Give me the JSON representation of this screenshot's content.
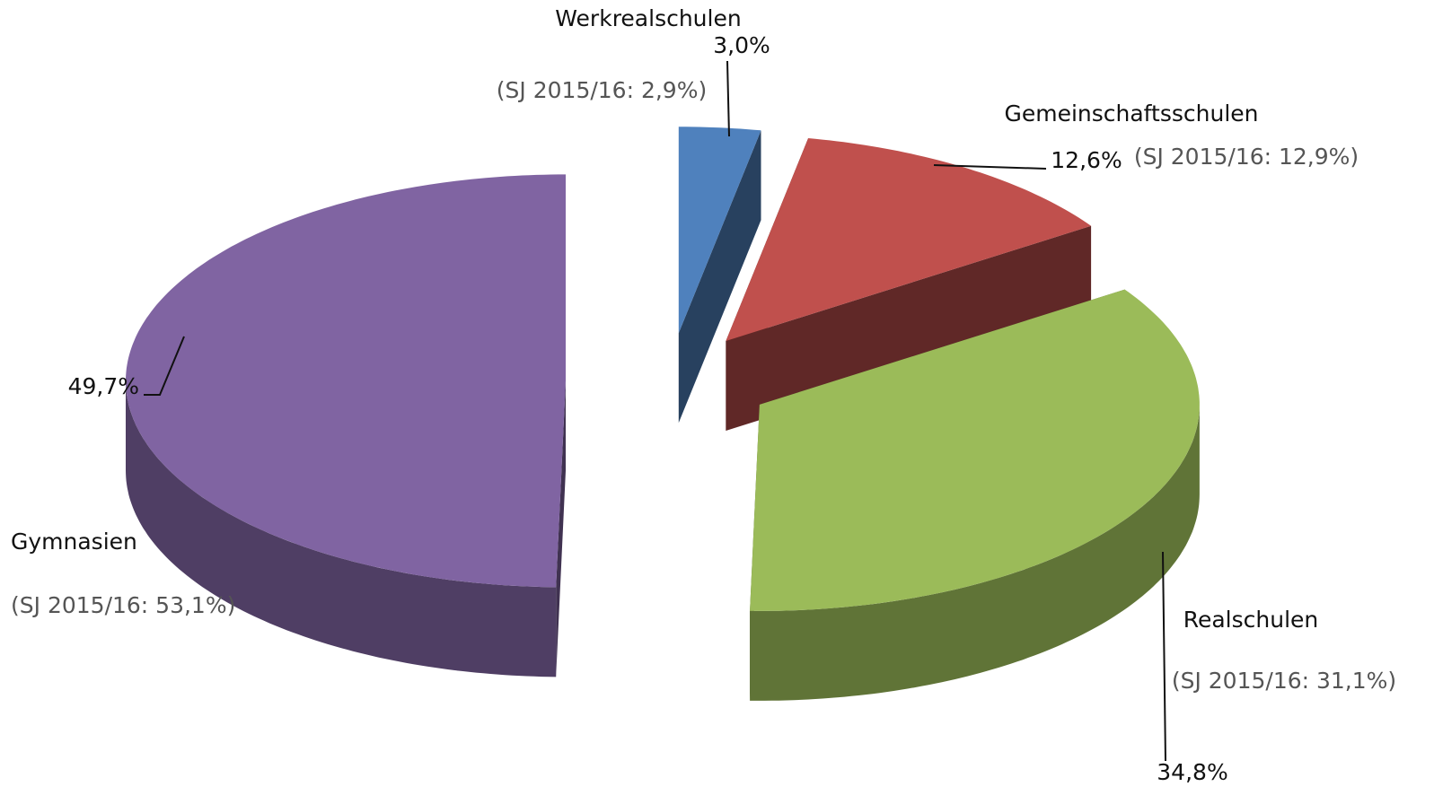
{
  "chart_data": {
    "type": "pie",
    "categories": [
      "Werkrealschulen",
      "Gemeinschaftsschulen",
      "Realschulen",
      "Gymnasien"
    ],
    "values": [
      3.0,
      12.6,
      34.8,
      49.7
    ],
    "value_labels": [
      "3,0%",
      "12,6%",
      "34,8%",
      "49,7%"
    ],
    "annotations": [
      "(SJ 2015/16: 2,9%)",
      "(SJ 2015/16: 12,9%)",
      "(SJ 2015/16: 31,1%)",
      "(SJ 2015/16: 53,1%)"
    ],
    "colors": [
      "#4f81bd",
      "#c0504d",
      "#9bbb59",
      "#8064a2"
    ]
  }
}
